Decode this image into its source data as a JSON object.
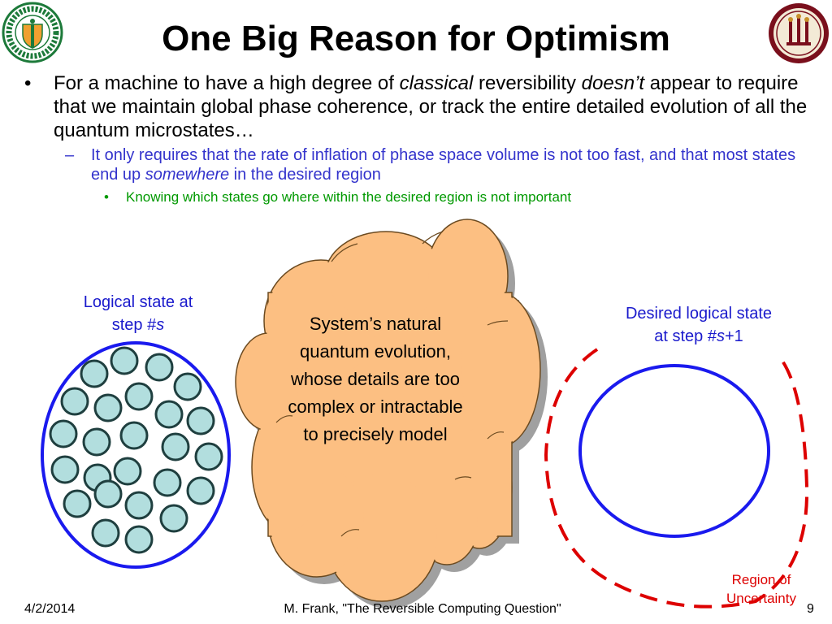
{
  "slide": {
    "title": "One Big Reason for Optimism",
    "bullets": {
      "main": {
        "bullet": "•",
        "t1": "For a machine to have a high degree of ",
        "t2": "classical",
        "t3": " reversibility ",
        "t4": "doesn’t",
        "t5": " appear to require that we maintain global phase coherence, or track the entire detailed evolution of all the quantum microstates…"
      },
      "sub": {
        "bullet": "–",
        "t1": "It only requires that the rate of inflation of phase space volume is not too fast, and that most states end up ",
        "t2": "somewhere",
        "t3": " in the desired region"
      },
      "subsub": {
        "bullet": "•",
        "text": "Knowing which states go where within the desired region is not important"
      }
    },
    "diagram": {
      "left_label": {
        "line1": "Logical state at",
        "line2_prefix": "step #",
        "line2_var": "s"
      },
      "cloud_text": "System’s natural quantum evolution, whose details are too complex or intractable to precisely model",
      "right_label": {
        "line1": "Desired logical state",
        "line2_prefix": "at step #",
        "line2_var": "s",
        "line2_suffix": "+1"
      },
      "region_label": {
        "line1": "Region of",
        "line2": "Uncertainty"
      },
      "colors": {
        "ellipse_stroke": "#1a1aee",
        "state_fill": "#b2dede",
        "state_stroke": "#1f3f3f",
        "cloud_fill": "#fcbf82",
        "cloud_shadow": "#a0a0a0",
        "region_dash": "#dd0000"
      }
    },
    "footer": {
      "date": "4/2/2014",
      "author": "M. Frank, \"The Reversible Computing Question\"",
      "page": "9"
    },
    "logos": {
      "left": "famu-seal-icon",
      "right": "fsu-seal-icon"
    }
  }
}
